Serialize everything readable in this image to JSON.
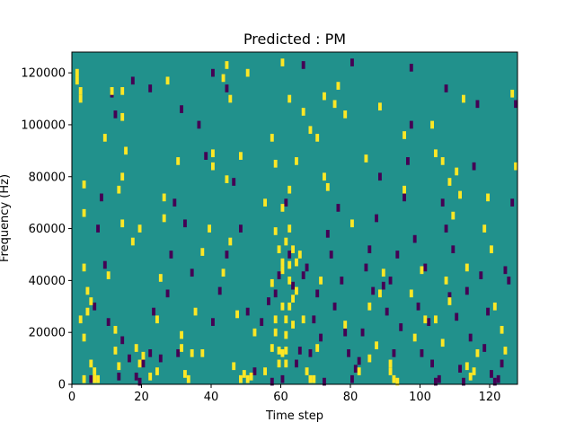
{
  "chart_data": {
    "type": "heatmap",
    "title": "Predicted : PM",
    "xlabel": "Time step",
    "ylabel": "Frequency (Hz)",
    "xlim": [
      0,
      128
    ],
    "ylim": [
      0,
      128000
    ],
    "x_ticks": [
      0,
      20,
      40,
      60,
      80,
      100,
      120
    ],
    "y_ticks": [
      0,
      20000,
      40000,
      60000,
      80000,
      100000,
      120000
    ],
    "colors": {
      "low": "#440154",
      "mid": "#21918c",
      "high": "#fde725"
    },
    "background_level": "mid",
    "high_cells": [
      [
        1,
        120000
      ],
      [
        1,
        117000
      ],
      [
        2,
        113000
      ],
      [
        2,
        110000
      ],
      [
        3,
        2000
      ],
      [
        6,
        2000
      ],
      [
        7,
        2000
      ],
      [
        6,
        5000
      ],
      [
        3,
        45000
      ],
      [
        3,
        66000
      ],
      [
        3,
        77000
      ],
      [
        4,
        36000
      ],
      [
        4,
        28000
      ],
      [
        5,
        32000
      ],
      [
        2,
        25000
      ],
      [
        3,
        18000
      ],
      [
        5,
        8000
      ],
      [
        10,
        42000
      ],
      [
        12,
        21000
      ],
      [
        12,
        13000
      ],
      [
        13,
        7000
      ],
      [
        14,
        62000
      ],
      [
        14,
        80000
      ],
      [
        13,
        75000
      ],
      [
        15,
        90000
      ],
      [
        14,
        103000
      ],
      [
        14,
        113000
      ],
      [
        17,
        55000
      ],
      [
        18,
        14000
      ],
      [
        19,
        8000
      ],
      [
        20,
        11000
      ],
      [
        22,
        3000
      ],
      [
        24,
        5000
      ],
      [
        24,
        25000
      ],
      [
        25,
        41000
      ],
      [
        26,
        64000
      ],
      [
        26,
        72000
      ],
      [
        27,
        117000
      ],
      [
        31,
        14000
      ],
      [
        31,
        19000
      ],
      [
        32,
        4000
      ],
      [
        33,
        2000
      ],
      [
        34,
        12000
      ],
      [
        37,
        51000
      ],
      [
        39,
        60000
      ],
      [
        40,
        84000
      ],
      [
        40,
        89000
      ],
      [
        43,
        43000
      ],
      [
        43,
        118000
      ],
      [
        44,
        123000
      ],
      [
        45,
        110000
      ],
      [
        45,
        55000
      ],
      [
        46,
        7000
      ],
      [
        47,
        27000
      ],
      [
        48,
        2000
      ],
      [
        49,
        4000
      ],
      [
        50,
        2000
      ],
      [
        51,
        3000
      ],
      [
        50,
        120000
      ],
      [
        52,
        20000
      ],
      [
        57,
        14000
      ],
      [
        57,
        39000
      ],
      [
        58,
        20000
      ],
      [
        58,
        25000
      ],
      [
        59,
        13000
      ],
      [
        59,
        8000
      ],
      [
        60,
        12000
      ],
      [
        60,
        30000
      ],
      [
        60,
        44000
      ],
      [
        61,
        8000
      ],
      [
        61,
        13000
      ],
      [
        61,
        19000
      ],
      [
        61,
        25000
      ],
      [
        62,
        30000
      ],
      [
        62,
        40000
      ],
      [
        62,
        46000
      ],
      [
        63,
        33000
      ],
      [
        63,
        23000
      ],
      [
        64,
        36000
      ],
      [
        58,
        59000
      ],
      [
        59,
        52000
      ],
      [
        60,
        47000
      ],
      [
        61,
        55000
      ],
      [
        62,
        60000
      ],
      [
        63,
        52000
      ],
      [
        64,
        47000
      ],
      [
        65,
        50000
      ],
      [
        60,
        68000
      ],
      [
        62,
        75000
      ],
      [
        58,
        85000
      ],
      [
        64,
        86000
      ],
      [
        62,
        110000
      ],
      [
        60,
        124000
      ],
      [
        67,
        5000
      ],
      [
        68,
        2000
      ],
      [
        69,
        2000
      ],
      [
        70,
        14000
      ],
      [
        71,
        40000
      ],
      [
        72,
        80000
      ],
      [
        73,
        76000
      ],
      [
        70,
        95000
      ],
      [
        75,
        108000
      ],
      [
        76,
        115000
      ],
      [
        78,
        23000
      ],
      [
        80,
        62000
      ],
      [
        82,
        5000
      ],
      [
        85,
        30000
      ],
      [
        87,
        15000
      ],
      [
        88,
        35000
      ],
      [
        89,
        43000
      ],
      [
        91,
        5000
      ],
      [
        92,
        2000
      ],
      [
        93,
        1000
      ],
      [
        95,
        75000
      ],
      [
        97,
        35000
      ],
      [
        100,
        44000
      ],
      [
        101,
        25000
      ],
      [
        103,
        100000
      ],
      [
        104,
        89000
      ],
      [
        106,
        16000
      ],
      [
        107,
        40000
      ],
      [
        108,
        32000
      ],
      [
        108,
        78000
      ],
      [
        109,
        65000
      ],
      [
        110,
        82000
      ],
      [
        111,
        73000
      ],
      [
        112,
        110000
      ],
      [
        113,
        7000
      ],
      [
        114,
        3000
      ],
      [
        115,
        5000
      ],
      [
        118,
        60000
      ],
      [
        119,
        72000
      ],
      [
        121,
        30000
      ],
      [
        123,
        21000
      ],
      [
        124,
        13000
      ],
      [
        126,
        112000
      ],
      [
        127,
        84000
      ],
      [
        106,
        86000
      ],
      [
        95,
        96000
      ],
      [
        88,
        107000
      ],
      [
        66,
        105000
      ],
      [
        68,
        98000
      ],
      [
        72,
        111000
      ],
      [
        78,
        104000
      ],
      [
        84,
        87000
      ],
      [
        48,
        88000
      ],
      [
        44,
        79000
      ],
      [
        30,
        86000
      ],
      [
        55,
        70000
      ],
      [
        19,
        60000
      ],
      [
        9,
        95000
      ],
      [
        11,
        113000
      ],
      [
        35,
        28000
      ],
      [
        37,
        12000
      ],
      [
        55,
        5000
      ],
      [
        57,
        95000
      ],
      [
        66,
        25000
      ],
      [
        85,
        10000
      ],
      [
        91,
        8000
      ],
      [
        98,
        18000
      ],
      [
        104,
        25000
      ],
      [
        113,
        45000
      ],
      [
        116,
        12000
      ],
      [
        120,
        52000
      ]
    ],
    "low_cells": [
      [
        5,
        2000
      ],
      [
        6,
        30000
      ],
      [
        7,
        60000
      ],
      [
        8,
        72000
      ],
      [
        9,
        46000
      ],
      [
        10,
        24000
      ],
      [
        11,
        112000
      ],
      [
        13,
        3000
      ],
      [
        14,
        17000
      ],
      [
        16,
        10000
      ],
      [
        18,
        3000
      ],
      [
        19,
        1000
      ],
      [
        20,
        8000
      ],
      [
        22,
        12000
      ],
      [
        23,
        28000
      ],
      [
        25,
        10000
      ],
      [
        27,
        35000
      ],
      [
        28,
        50000
      ],
      [
        29,
        70000
      ],
      [
        30,
        12000
      ],
      [
        32,
        62000
      ],
      [
        34,
        43000
      ],
      [
        36,
        100000
      ],
      [
        38,
        88000
      ],
      [
        40,
        24000
      ],
      [
        42,
        36000
      ],
      [
        44,
        50000
      ],
      [
        46,
        78000
      ],
      [
        48,
        60000
      ],
      [
        50,
        28000
      ],
      [
        52,
        5000
      ],
      [
        54,
        24000
      ],
      [
        56,
        32000
      ],
      [
        57,
        1000
      ],
      [
        58,
        35000
      ],
      [
        59,
        42000
      ],
      [
        60,
        2000
      ],
      [
        61,
        70000
      ],
      [
        62,
        50000
      ],
      [
        63,
        38000
      ],
      [
        64,
        8000
      ],
      [
        65,
        13000
      ],
      [
        66,
        42000
      ],
      [
        67,
        45000
      ],
      [
        68,
        12000
      ],
      [
        69,
        25000
      ],
      [
        70,
        35000
      ],
      [
        71,
        18000
      ],
      [
        72,
        1000
      ],
      [
        73,
        58000
      ],
      [
        74,
        50000
      ],
      [
        75,
        30000
      ],
      [
        76,
        68000
      ],
      [
        77,
        40000
      ],
      [
        78,
        20000
      ],
      [
        79,
        12000
      ],
      [
        80,
        2000
      ],
      [
        81,
        6000
      ],
      [
        82,
        9000
      ],
      [
        83,
        20000
      ],
      [
        84,
        45000
      ],
      [
        85,
        52000
      ],
      [
        86,
        36000
      ],
      [
        87,
        64000
      ],
      [
        88,
        80000
      ],
      [
        89,
        38000
      ],
      [
        90,
        28000
      ],
      [
        91,
        40000
      ],
      [
        92,
        12000
      ],
      [
        93,
        50000
      ],
      [
        94,
        22000
      ],
      [
        95,
        72000
      ],
      [
        96,
        86000
      ],
      [
        97,
        100000
      ],
      [
        98,
        56000
      ],
      [
        99,
        30000
      ],
      [
        100,
        12000
      ],
      [
        101,
        45000
      ],
      [
        102,
        24000
      ],
      [
        103,
        8000
      ],
      [
        104,
        1000
      ],
      [
        105,
        2000
      ],
      [
        106,
        70000
      ],
      [
        107,
        60000
      ],
      [
        108,
        34000
      ],
      [
        109,
        52000
      ],
      [
        110,
        26000
      ],
      [
        111,
        6000
      ],
      [
        112,
        1000
      ],
      [
        113,
        36000
      ],
      [
        114,
        18000
      ],
      [
        115,
        84000
      ],
      [
        116,
        108000
      ],
      [
        117,
        42000
      ],
      [
        118,
        14000
      ],
      [
        119,
        28000
      ],
      [
        120,
        4000
      ],
      [
        121,
        1000
      ],
      [
        122,
        2000
      ],
      [
        123,
        8000
      ],
      [
        124,
        44000
      ],
      [
        125,
        40000
      ],
      [
        126,
        70000
      ],
      [
        127,
        108000
      ],
      [
        44,
        114000
      ],
      [
        40,
        120000
      ],
      [
        66,
        123000
      ],
      [
        80,
        124000
      ],
      [
        97,
        122000
      ],
      [
        107,
        114000
      ],
      [
        31,
        106000
      ],
      [
        22,
        114000
      ],
      [
        17,
        117000
      ],
      [
        12,
        104000
      ]
    ]
  }
}
